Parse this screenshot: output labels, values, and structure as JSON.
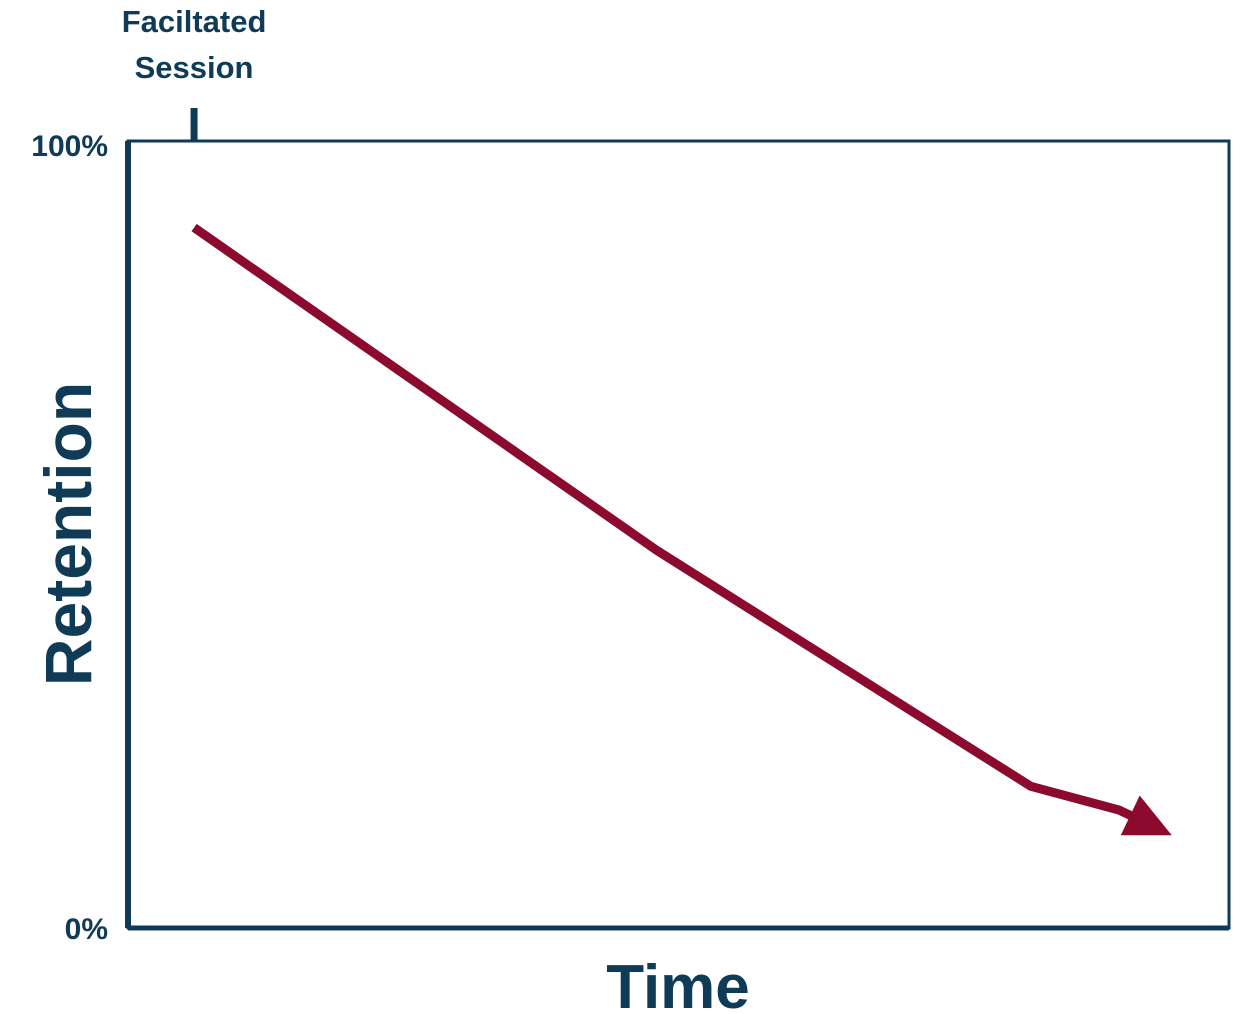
{
  "chart_data": {
    "type": "line",
    "title": "",
    "xlabel": "Time",
    "ylabel": "Retention",
    "yticks": [
      "100%",
      "0%"
    ],
    "ylim": [
      0,
      100
    ],
    "xlim": [
      0,
      100
    ],
    "marker": {
      "label": "Faciltated Session",
      "x": 6
    },
    "series": [
      {
        "values_x": [
          6,
          48,
          82,
          90,
          93
        ],
        "values_y": [
          89,
          48,
          18,
          15,
          13
        ]
      }
    ],
    "legend": "none",
    "grid": false
  },
  "colors": {
    "axis": "#0f3b57",
    "line": "#8b0a2e"
  }
}
